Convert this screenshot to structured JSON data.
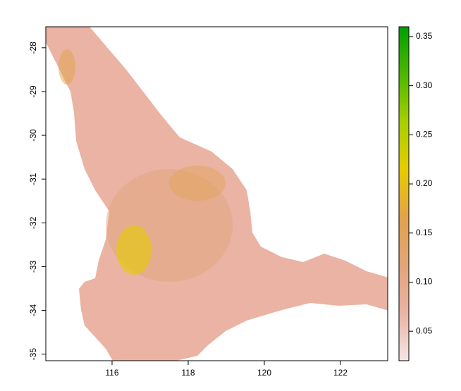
{
  "chart_data": {
    "type": "raster-map",
    "xlim": [
      114.26,
      123.24
    ],
    "ylim": [
      -35.15,
      -27.52
    ],
    "xticks": [
      116,
      118,
      120,
      122
    ],
    "yticks": [
      -35,
      -34,
      -33,
      -32,
      -31,
      -30,
      -29,
      -28
    ],
    "colorbar": {
      "lim": [
        0.02,
        0.36
      ],
      "ticks": [
        0.05,
        {
          "value": 0.1,
          "label": "0.10"
        },
        0.15,
        {
          "value": 0.2,
          "label": "0.20"
        },
        0.25,
        {
          "value": 0.3,
          "label": "0.30"
        },
        0.35
      ],
      "colors": [
        "#f3e6e6",
        "#eab3a3",
        "#e2a47a",
        "#e2a24a",
        "#e6cc00",
        "#a8cf00",
        "#4cb800",
        "#00a000"
      ]
    }
  }
}
